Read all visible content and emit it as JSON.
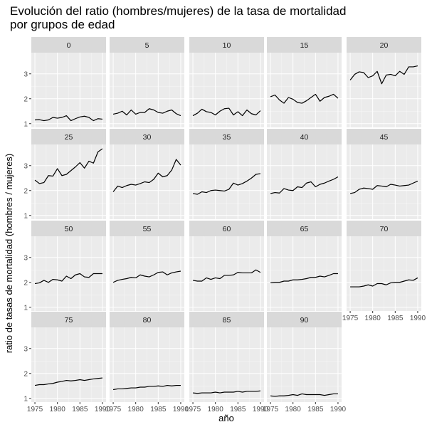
{
  "chart_data": {
    "type": "line",
    "title_lines": [
      "Evolución del ratio (hombres/mujeres) de la tasa de mortalidad",
      "por grupos de edad"
    ],
    "xlabel": "año",
    "ylabel": "ratio de tasas de mortalidad (hombres / mujeres)",
    "x_ticks": [
      1975,
      1980,
      1985,
      1990
    ],
    "y_ticks": [
      1,
      2,
      3
    ],
    "xlim": [
      1974.2,
      1990.8
    ],
    "ylim": [
      0.85,
      3.85
    ],
    "grid": true,
    "x": [
      1975,
      1976,
      1977,
      1978,
      1979,
      1980,
      1981,
      1982,
      1983,
      1984,
      1985,
      1986,
      1987,
      1988,
      1989,
      1990
    ],
    "facets": [
      {
        "name": "0",
        "values": [
          1.15,
          1.16,
          1.12,
          1.15,
          1.25,
          1.22,
          1.25,
          1.32,
          1.12,
          1.2,
          1.27,
          1.3,
          1.25,
          1.12,
          1.2,
          1.18
        ]
      },
      {
        "name": "5",
        "values": [
          1.38,
          1.42,
          1.5,
          1.35,
          1.55,
          1.38,
          1.45,
          1.45,
          1.6,
          1.55,
          1.45,
          1.42,
          1.5,
          1.55,
          1.4,
          1.32
        ]
      },
      {
        "name": "10",
        "values": [
          1.32,
          1.42,
          1.58,
          1.48,
          1.45,
          1.35,
          1.5,
          1.6,
          1.62,
          1.35,
          1.48,
          1.32,
          1.55,
          1.4,
          1.35,
          1.52
        ]
      },
      {
        "name": "15",
        "values": [
          2.08,
          2.15,
          1.95,
          1.82,
          2.05,
          1.98,
          1.85,
          1.82,
          1.92,
          2.05,
          2.18,
          1.9,
          2.05,
          2.1,
          2.18,
          2.02
        ]
      },
      {
        "name": "20",
        "values": [
          2.75,
          2.98,
          3.08,
          3.05,
          2.85,
          2.92,
          3.1,
          2.6,
          2.95,
          2.98,
          2.92,
          3.1,
          2.98,
          3.28,
          3.28,
          3.32
        ]
      },
      {
        "name": "25",
        "values": [
          2.42,
          2.28,
          2.32,
          2.6,
          2.58,
          2.88,
          2.6,
          2.65,
          2.8,
          2.95,
          3.12,
          2.9,
          3.18,
          3.1,
          3.55,
          3.68
        ]
      },
      {
        "name": "30",
        "values": [
          1.95,
          2.18,
          2.12,
          2.2,
          2.25,
          2.22,
          2.28,
          2.35,
          2.32,
          2.45,
          2.7,
          2.55,
          2.6,
          2.82,
          3.25,
          3.02
        ]
      },
      {
        "name": "35",
        "values": [
          1.88,
          1.85,
          1.95,
          1.92,
          2.0,
          2.02,
          2.0,
          1.98,
          2.05,
          2.3,
          2.22,
          2.28,
          2.38,
          2.5,
          2.65,
          2.68
        ]
      },
      {
        "name": "40",
        "values": [
          1.88,
          1.92,
          1.9,
          2.08,
          2.02,
          2.0,
          2.15,
          2.12,
          2.3,
          2.35,
          2.15,
          2.25,
          2.3,
          2.38,
          2.45,
          2.55
        ]
      },
      {
        "name": "45",
        "values": [
          1.88,
          1.92,
          2.05,
          2.1,
          2.08,
          2.05,
          2.2,
          2.18,
          2.15,
          2.25,
          2.22,
          2.18,
          2.2,
          2.22,
          2.3,
          2.38
        ]
      },
      {
        "name": "50",
        "values": [
          1.95,
          1.98,
          2.08,
          2.0,
          2.12,
          2.1,
          2.05,
          2.25,
          2.15,
          2.3,
          2.35,
          2.22,
          2.2,
          2.35,
          2.35,
          2.35
        ]
      },
      {
        "name": "55",
        "values": [
          2.0,
          2.08,
          2.12,
          2.15,
          2.2,
          2.18,
          2.3,
          2.25,
          2.22,
          2.3,
          2.4,
          2.42,
          2.3,
          2.38,
          2.42,
          2.45
        ]
      },
      {
        "name": "60",
        "values": [
          2.08,
          2.05,
          2.05,
          2.18,
          2.12,
          2.18,
          2.15,
          2.28,
          2.28,
          2.3,
          2.4,
          2.38,
          2.38,
          2.38,
          2.5,
          2.4
        ]
      },
      {
        "name": "65",
        "values": [
          1.98,
          2.0,
          2.0,
          2.05,
          2.05,
          2.1,
          2.1,
          2.12,
          2.15,
          2.2,
          2.2,
          2.25,
          2.22,
          2.28,
          2.35,
          2.35
        ]
      },
      {
        "name": "70",
        "values": [
          1.82,
          1.82,
          1.82,
          1.85,
          1.9,
          1.85,
          1.95,
          1.95,
          1.9,
          1.98,
          2.0,
          2.0,
          2.05,
          2.1,
          2.08,
          2.18
        ]
      },
      {
        "name": "75",
        "values": [
          1.52,
          1.55,
          1.55,
          1.58,
          1.6,
          1.65,
          1.68,
          1.72,
          1.7,
          1.72,
          1.75,
          1.72,
          1.75,
          1.78,
          1.8,
          1.82
        ]
      },
      {
        "name": "80",
        "values": [
          1.35,
          1.38,
          1.38,
          1.4,
          1.42,
          1.42,
          1.45,
          1.45,
          1.48,
          1.48,
          1.5,
          1.48,
          1.52,
          1.5,
          1.52,
          1.52
        ]
      },
      {
        "name": "85",
        "values": [
          1.22,
          1.2,
          1.22,
          1.22,
          1.22,
          1.25,
          1.22,
          1.25,
          1.25,
          1.25,
          1.28,
          1.25,
          1.28,
          1.28,
          1.28,
          1.3
        ]
      },
      {
        "name": "90",
        "values": [
          1.1,
          1.08,
          1.1,
          1.1,
          1.12,
          1.15,
          1.12,
          1.18,
          1.15,
          1.15,
          1.15,
          1.15,
          1.12,
          1.15,
          1.18,
          1.18
        ]
      }
    ]
  },
  "colors": {
    "panel_background": "#ebebeb",
    "strip_background": "#d9d9d9",
    "grid_major": "#ffffff",
    "line": "#000000"
  }
}
